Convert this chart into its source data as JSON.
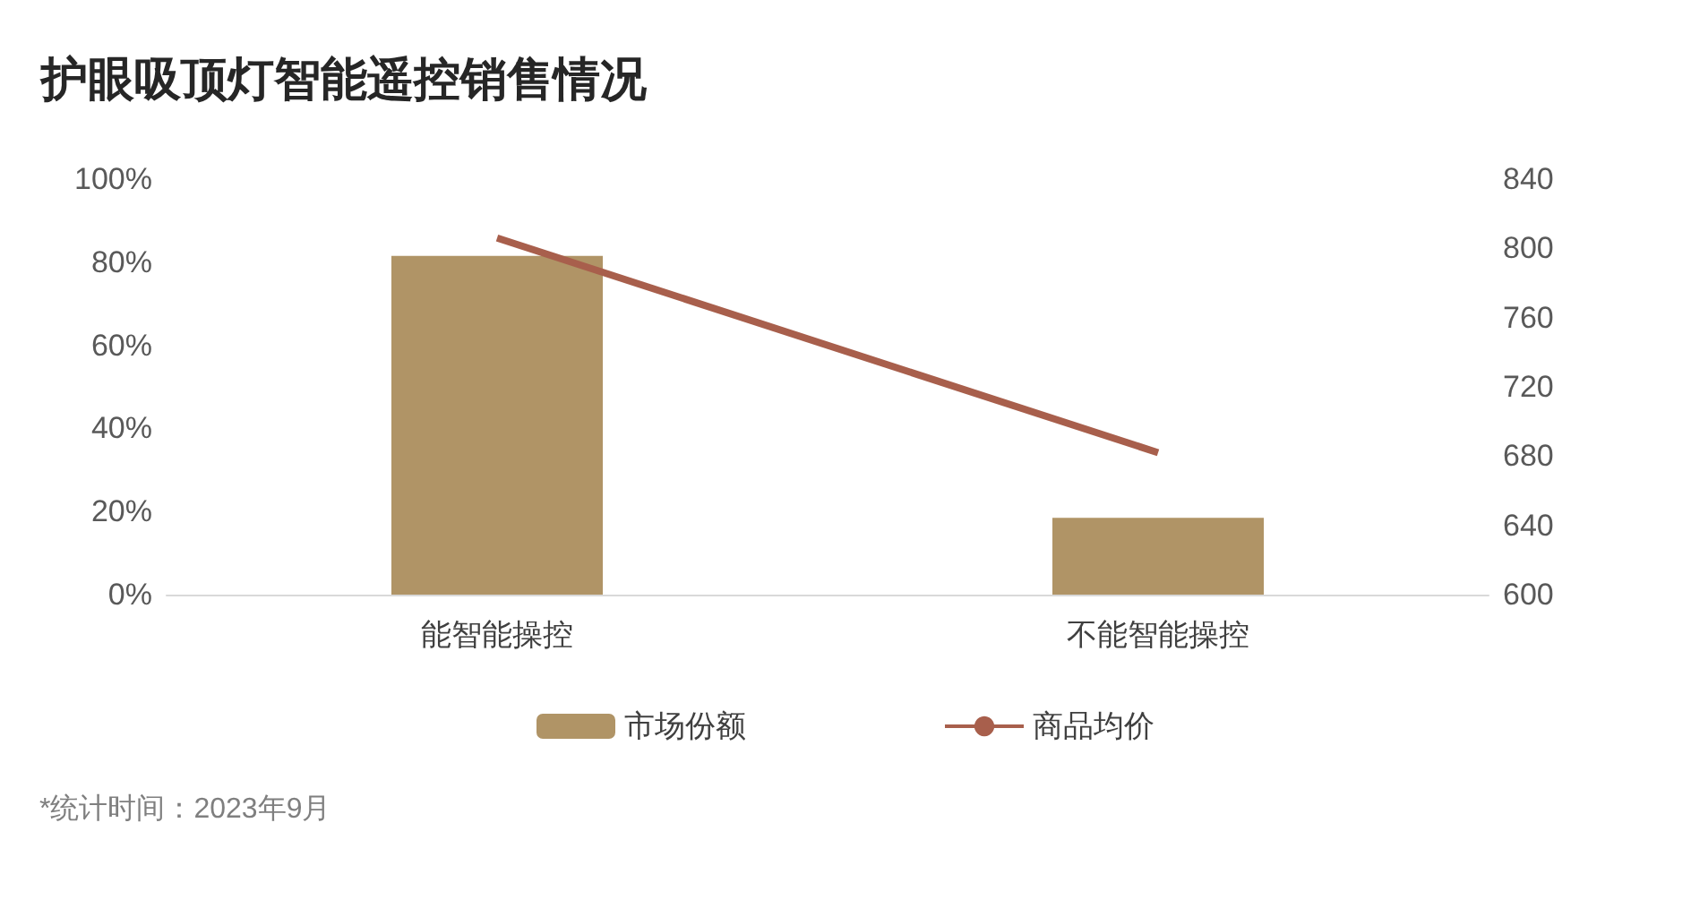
{
  "chart_data": {
    "type": "bar",
    "title": "护眼吸顶灯智能遥控销售情况",
    "categories": [
      "能智能操控",
      "不能智能操控"
    ],
    "series": [
      {
        "name": "市场份额",
        "color": "#b09466",
        "values": [
          81.5,
          18.5
        ]
      },
      {
        "name": "商品均价",
        "type": "line",
        "axis": "y2",
        "color": "#a85f4c",
        "values": [
          806,
          682
        ]
      }
    ],
    "ylim": [
      0,
      100
    ],
    "yticks": [
      {
        "value": 0,
        "label": "0%"
      },
      {
        "value": 20,
        "label": "20%"
      },
      {
        "value": 40,
        "label": "40%"
      },
      {
        "value": 60,
        "label": "60%"
      },
      {
        "value": 80,
        "label": "80%"
      },
      {
        "value": 100,
        "label": "100%"
      }
    ],
    "y2lim": [
      600,
      840
    ],
    "y2ticks": [
      600,
      640,
      680,
      720,
      760,
      800,
      840
    ],
    "legend": "bottom",
    "marker": "none",
    "line_style": "solid",
    "annotations": [
      "*统计时间：2023年9月"
    ]
  }
}
